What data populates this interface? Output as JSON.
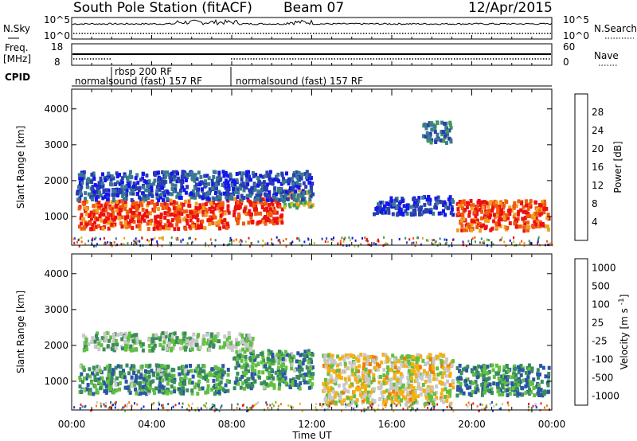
{
  "header": {
    "station": "South Pole Station (fitACF)",
    "beam": "Beam 07",
    "date": "12/Apr/2015"
  },
  "side_labels": {
    "nsky": "N.Sky",
    "nsearch": "N.Search",
    "freq": "Freq.",
    "freq_unit": "[MHz]",
    "nave": "Nave",
    "cpid": "CPID"
  },
  "noise_ticks": {
    "left_top": "10^5",
    "left_bottom": "10^0",
    "right_top": "10^5",
    "right_bottom": "10^0"
  },
  "freq_ticks": {
    "left_top": "18",
    "left_bottom": "8",
    "right_top": "60",
    "right_bottom": "0"
  },
  "cpid_segments": [
    {
      "label": "normalsound (fast) 157 RF",
      "start_h": 0,
      "end_h": 8.15
    },
    {
      "label": "rbsp 200 RF",
      "start_h": 1.9,
      "end_h": 8.15
    },
    {
      "label": "normalsound (fast) 157 RF",
      "start_h": 8.15,
      "end_h": 24
    }
  ],
  "x_axis": {
    "title": "Time UT",
    "ticks": [
      "00:00",
      "04:00",
      "08:00",
      "12:00",
      "16:00",
      "20:00",
      "00:00"
    ],
    "range_h": [
      0,
      24
    ]
  },
  "chart_data": [
    {
      "type": "heatmap",
      "name": "power",
      "ylabel": "Slant Range [km]",
      "ylim": [
        200,
        4550
      ],
      "y_ticks": [
        1000,
        2000,
        3000,
        4000
      ],
      "colorbar": {
        "label": "Power [dB]",
        "ticks": [
          "4",
          "8",
          "12",
          "16",
          "20",
          "24",
          "28"
        ],
        "colors": [
          "#1515ee",
          "#2a3fae",
          "#3a7a90",
          "#3f9a5a",
          "#b3c92a",
          "#f0a020",
          "#f05a10",
          "#ee1010"
        ]
      },
      "regions": [
        {
          "t": [
            0.3,
            7.8
          ],
          "r": [
            700,
            1500
          ],
          "level": 0.85
        },
        {
          "t": [
            8.0,
            10.5
          ],
          "r": [
            850,
            1550
          ],
          "level": 0.9
        },
        {
          "t": [
            10.5,
            12.0
          ],
          "r": [
            1300,
            1800
          ],
          "level": 0.55
        },
        {
          "t": [
            0.2,
            12.0
          ],
          "r": [
            1500,
            2300
          ],
          "level": 0.2
        },
        {
          "t": [
            19.2,
            23.8
          ],
          "r": [
            650,
            1500
          ],
          "level": 0.85
        },
        {
          "t": [
            15.0,
            19.0
          ],
          "r": [
            1100,
            1600
          ],
          "level": 0.15
        },
        {
          "t": [
            17.5,
            19.0
          ],
          "r": [
            3100,
            3700
          ],
          "level": 0.3
        }
      ]
    },
    {
      "type": "heatmap",
      "name": "velocity",
      "ylabel": "Slant Range [km]",
      "ylim": [
        200,
        4550
      ],
      "y_ticks": [
        1000,
        2000,
        3000,
        4000
      ],
      "colorbar": {
        "label": "Velocity [m s^-1]",
        "ticks": [
          "1000",
          "500",
          "100",
          "25",
          "-25",
          "-100",
          "-500",
          "-1000"
        ],
        "colors": [
          "#1530c8",
          "#2a55a8",
          "#3a8a60",
          "#60c040",
          "#c8c8c8",
          "#f5b010",
          "#f07a10",
          "#e82020"
        ]
      },
      "regions": [
        {
          "t": [
            0.3,
            7.8
          ],
          "r": [
            700,
            1500
          ],
          "level": 0.35
        },
        {
          "t": [
            8.0,
            12.0
          ],
          "r": [
            850,
            1900
          ],
          "level": 0.35
        },
        {
          "t": [
            0.5,
            9.0
          ],
          "r": [
            1900,
            2400
          ],
          "level": 0.45
        },
        {
          "t": [
            19.2,
            23.8
          ],
          "r": [
            650,
            1500
          ],
          "level": 0.3
        },
        {
          "t": [
            12.5,
            19.0
          ],
          "r": [
            400,
            1800
          ],
          "level": 0.6
        }
      ]
    }
  ]
}
